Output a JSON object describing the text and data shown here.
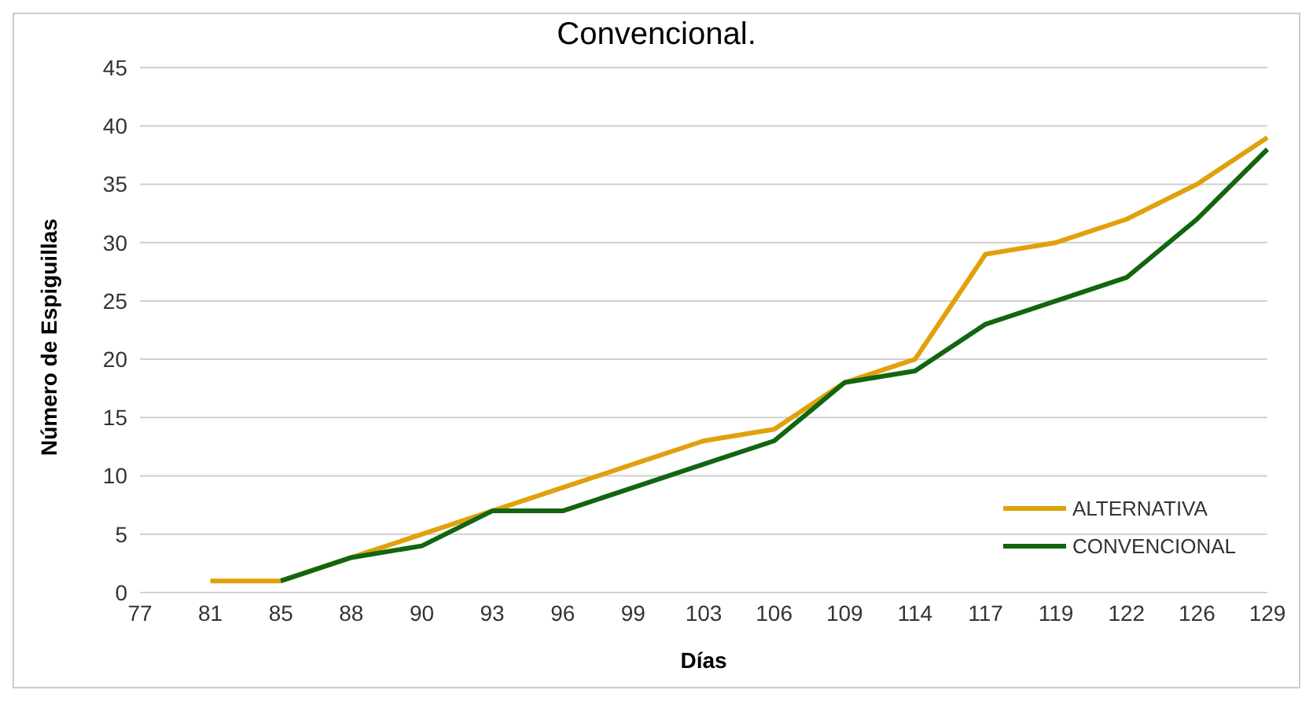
{
  "chart_data": {
    "type": "line",
    "title": "Convencional.",
    "xlabel": "Días",
    "ylabel": "Número de Espiguillas",
    "categories": [
      "77",
      "81",
      "85",
      "88",
      "90",
      "93",
      "96",
      "99",
      "103",
      "106",
      "109",
      "114",
      "117",
      "119",
      "122",
      "126",
      "129"
    ],
    "series": [
      {
        "name": "ALTERNATIVA",
        "color": "#e0a10a",
        "values": [
          null,
          1,
          1,
          3,
          5,
          7,
          9,
          11,
          13,
          14,
          18,
          20,
          29,
          30,
          32,
          35,
          39
        ]
      },
      {
        "name": "CONVENCIONAL",
        "color": "#11660f",
        "values": [
          null,
          null,
          1,
          3,
          4,
          7,
          7,
          9,
          11,
          13,
          18,
          19,
          23,
          25,
          27,
          32,
          38
        ]
      }
    ],
    "ylim": [
      0,
      45
    ],
    "yticks": [
      0,
      5,
      10,
      15,
      20,
      25,
      30,
      35,
      40,
      45
    ],
    "grid": "y",
    "legend": "bottom right",
    "marker": "none",
    "line_style": "solid"
  }
}
